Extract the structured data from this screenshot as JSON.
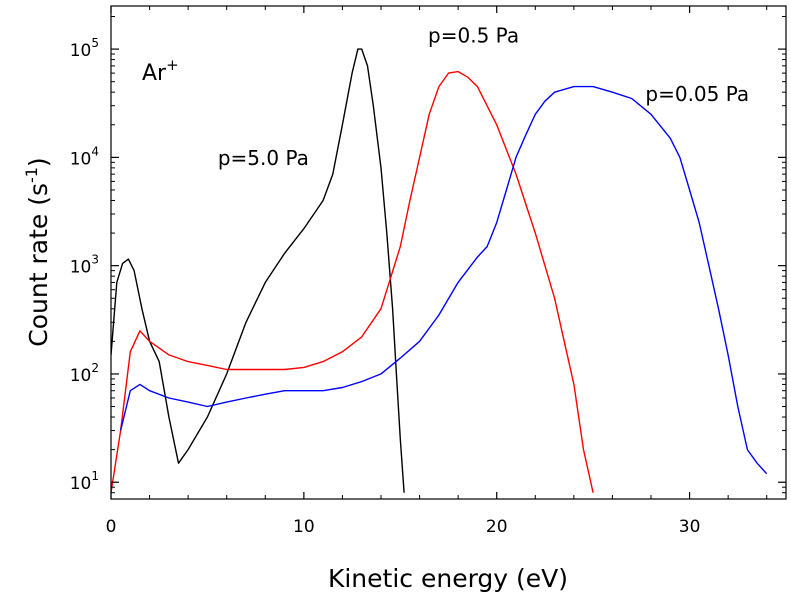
{
  "chart_data": {
    "type": "line",
    "title": "",
    "xlabel": "Kinetic energy (eV)",
    "ylabel_main": "Count rate (s",
    "ylabel_sup": "-1",
    "ylabel_close": ")",
    "xlim": [
      0,
      35
    ],
    "ylim": [
      7,
      250000
    ],
    "yscale": "log",
    "grid": false,
    "x_ticks": [
      0,
      10,
      20,
      30
    ],
    "y_ticks": [
      {
        "value": 10,
        "base": "10",
        "exp": "1"
      },
      {
        "value": 100,
        "base": "10",
        "exp": "2"
      },
      {
        "value": 1000,
        "base": "10",
        "exp": "3"
      },
      {
        "value": 10000,
        "base": "10",
        "exp": "4"
      },
      {
        "value": 100000,
        "base": "10",
        "exp": "5"
      }
    ],
    "species_label": {
      "base": "Ar",
      "sup": "+"
    },
    "series": [
      {
        "name": "p=5.0 Pa",
        "color": "#000000",
        "x": [
          0,
          0.3,
          0.6,
          0.9,
          1.2,
          1.6,
          2.0,
          2.5,
          3.0,
          3.5,
          4.0,
          5.0,
          6.0,
          7.0,
          8.0,
          9.0,
          10.0,
          11.0,
          11.5,
          12.0,
          12.5,
          12.8,
          13.0,
          13.3,
          13.6,
          14.0,
          14.3,
          14.6,
          14.8,
          15.0,
          15.2
        ],
        "y": [
          150,
          700,
          1050,
          1150,
          900,
          400,
          200,
          130,
          40,
          15,
          20,
          40,
          100,
          300,
          700,
          1300,
          2200,
          4000,
          7000,
          20000,
          60000,
          100000,
          100000,
          70000,
          30000,
          8000,
          2000,
          400,
          100,
          25,
          8
        ]
      },
      {
        "name": "p=0.5 Pa",
        "color": "#ff0000",
        "x": [
          0,
          0.5,
          1.0,
          1.5,
          2.0,
          3.0,
          4.0,
          5.0,
          6.0,
          7.0,
          8.0,
          9.0,
          10.0,
          11.0,
          12.0,
          13.0,
          14.0,
          15.0,
          15.5,
          16.0,
          16.5,
          17.0,
          17.5,
          18.0,
          18.5,
          19.0,
          20.0,
          21.0,
          22.0,
          23.0,
          23.5,
          24.0,
          24.5,
          25.0
        ],
        "y": [
          8,
          30,
          160,
          250,
          200,
          150,
          130,
          120,
          110,
          110,
          110,
          110,
          115,
          130,
          160,
          220,
          400,
          1500,
          4000,
          10000,
          25000,
          45000,
          60000,
          62000,
          55000,
          45000,
          20000,
          7000,
          2000,
          500,
          200,
          80,
          20,
          8
        ]
      },
      {
        "name": "p=0.05 Pa",
        "color": "#0000ff",
        "x": [
          0.5,
          1.0,
          1.5,
          2.0,
          3.0,
          4.0,
          5.0,
          6.0,
          7.0,
          8.0,
          9.0,
          10.0,
          11.0,
          12.0,
          13.0,
          14.0,
          15.0,
          16.0,
          17.0,
          18.0,
          19.0,
          19.5,
          20.0,
          20.5,
          21.0,
          21.5,
          22.0,
          22.5,
          23.0,
          24.0,
          25.0,
          26.0,
          27.0,
          28.0,
          29.0,
          29.5,
          30.0,
          30.5,
          31.0,
          31.5,
          32.0,
          32.5,
          33.0,
          33.5,
          34.0
        ],
        "y": [
          30,
          70,
          80,
          70,
          60,
          55,
          50,
          55,
          60,
          65,
          70,
          70,
          70,
          75,
          85,
          100,
          140,
          200,
          350,
          700,
          1200,
          1500,
          2500,
          5000,
          10000,
          16000,
          25000,
          33000,
          40000,
          45000,
          45000,
          40000,
          35000,
          25000,
          15000,
          10000,
          5000,
          2500,
          1000,
          400,
          150,
          50,
          20,
          15,
          12
        ]
      }
    ],
    "annotations": [
      {
        "text": "p=5.0 Pa",
        "x": 7.9,
        "y": 8500
      },
      {
        "text": "p=0.5 Pa",
        "x": 18.8,
        "y": 115000
      },
      {
        "text": "p=0.05 Pa",
        "x": 30.4,
        "y": 33000
      }
    ]
  }
}
